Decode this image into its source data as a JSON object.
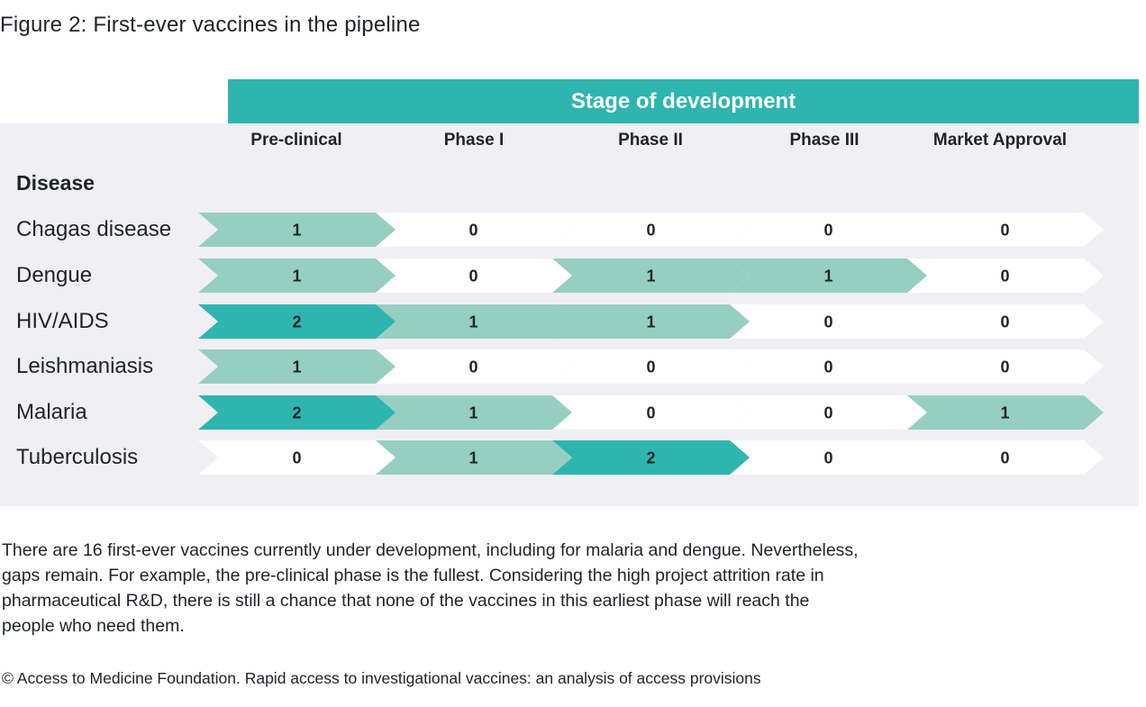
{
  "figure_title": "Figure 2: First-ever vaccines in the pipeline",
  "chart_data": {
    "type": "table",
    "header_group": "Stage of development",
    "row_header": "Disease",
    "columns": [
      "Pre-clinical",
      "Phase I",
      "Phase II",
      "Phase III",
      "Market Approval"
    ],
    "rows": [
      {
        "label": "Chagas disease",
        "values": [
          1,
          0,
          0,
          0,
          0
        ]
      },
      {
        "label": "Dengue",
        "values": [
          1,
          0,
          1,
          1,
          0
        ]
      },
      {
        "label": "HIV/AIDS",
        "values": [
          2,
          1,
          1,
          0,
          0
        ]
      },
      {
        "label": "Leishmaniasis",
        "values": [
          1,
          0,
          0,
          0,
          0
        ]
      },
      {
        "label": "Malaria",
        "values": [
          2,
          1,
          0,
          0,
          1
        ]
      },
      {
        "label": "Tuberculosis",
        "values": [
          0,
          1,
          2,
          0,
          0
        ]
      }
    ],
    "colors": {
      "zero": "#ffffff",
      "one": "#96cfc1",
      "two": "#2fb5b0",
      "header": "#2fb5b0",
      "panel": "#f0f0f4"
    }
  },
  "note": "There are 16 first-ever vaccines currently under development, including for malaria and dengue. Nevertheless, gaps remain. For example, the pre-clinical phase is the fullest. Considering the high project attrition rate in pharmaceutical R&D, there is still a chance that none of the vaccines in this earliest phase will reach the people who need them.",
  "credit": "© Access to Medicine Foundation. Rapid access to investigational vaccines: an analysis of access provisions"
}
